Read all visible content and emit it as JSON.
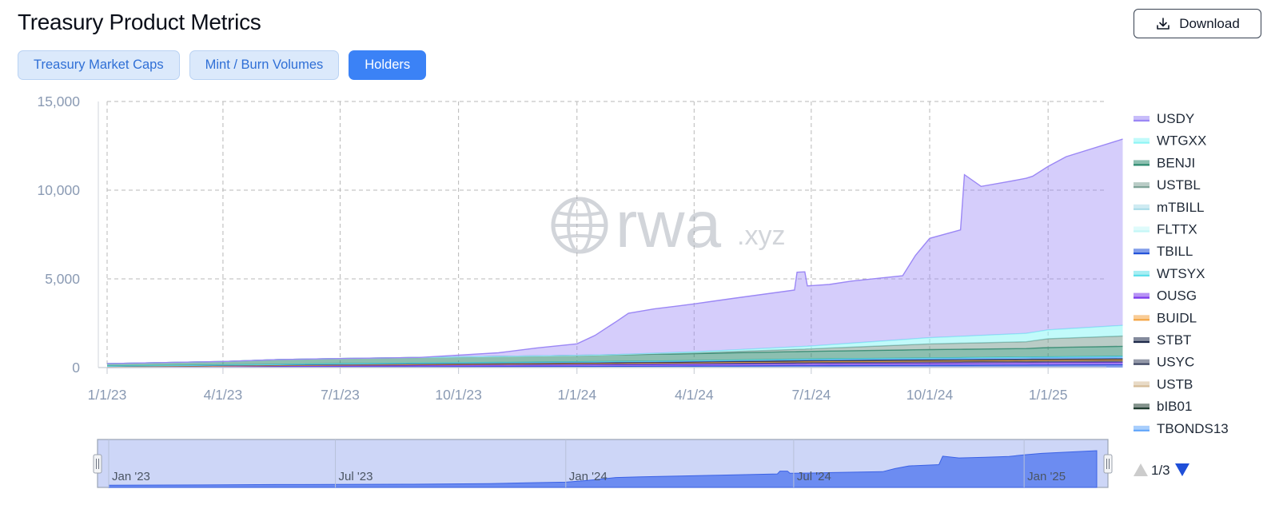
{
  "header": {
    "title": "Treasury Product Metrics",
    "download_label": "Download"
  },
  "tabs": [
    {
      "label": "Treasury Market Caps",
      "active": false
    },
    {
      "label": "Mint / Burn Volumes",
      "active": false
    },
    {
      "label": "Holders",
      "active": true
    }
  ],
  "watermark": {
    "main": "rwa",
    "suffix": ".xyz"
  },
  "legend": {
    "page": "1/3",
    "items": [
      {
        "name": "USDY",
        "color": "#9b87f5"
      },
      {
        "name": "WTGXX",
        "color": "#8ef5f5"
      },
      {
        "name": "BENJI",
        "color": "#2e8b70"
      },
      {
        "name": "USTBL",
        "color": "#7fa398"
      },
      {
        "name": "mTBILL",
        "color": "#a8dbe8"
      },
      {
        "name": "FLTTX",
        "color": "#c5f7f7"
      },
      {
        "name": "TBILL",
        "color": "#1d4ed8"
      },
      {
        "name": "WTSYX",
        "color": "#5ee0ea"
      },
      {
        "name": "OUSG",
        "color": "#7c3aed"
      },
      {
        "name": "BUIDL",
        "color": "#f4a340"
      },
      {
        "name": "STBT",
        "color": "#1e2a4a"
      },
      {
        "name": "USYC",
        "color": "#3b4460"
      },
      {
        "name": "USTB",
        "color": "#d6bc98"
      },
      {
        "name": "bIB01",
        "color": "#1f3b2f"
      },
      {
        "name": "TBONDS13",
        "color": "#60a5fa"
      }
    ]
  },
  "navigator": {
    "labels": [
      "Jan '23",
      "Jul '23",
      "Jan '24",
      "Jul '24",
      "Jan '25"
    ]
  },
  "chart_data": {
    "type": "area",
    "stacked": true,
    "x_axis_type": "date",
    "xlim": [
      "2023-01-01",
      "2025-02-28"
    ],
    "ylim": [
      0,
      15000
    ],
    "y_ticks": [
      "0",
      "5,000",
      "10,000",
      "15,000"
    ],
    "y_tick_values": [
      0,
      5000,
      10000,
      15000
    ],
    "x_ticks": [
      "1/1/23",
      "4/1/23",
      "7/1/23",
      "10/1/23",
      "1/1/24",
      "4/1/24",
      "7/1/24",
      "10/1/24",
      "1/1/25"
    ],
    "x_tick_dates": [
      "2023-01-01",
      "2023-04-01",
      "2023-07-01",
      "2023-10-01",
      "2024-01-01",
      "2024-04-01",
      "2024-07-01",
      "2024-10-01",
      "2025-01-01"
    ],
    "grid": true,
    "legend_position": "right",
    "series": [
      {
        "name": "TBILL",
        "color": "#1d4ed8",
        "x": [
          "2023-01-01",
          "2023-07-01",
          "2024-01-01",
          "2024-07-01",
          "2024-10-01",
          "2025-01-01",
          "2025-02-28"
        ],
        "y": [
          0,
          40,
          70,
          110,
          130,
          150,
          160
        ]
      },
      {
        "name": "OUSG",
        "color": "#7c3aed",
        "x": [
          "2023-01-01",
          "2023-07-01",
          "2024-01-01",
          "2024-07-01",
          "2025-02-28"
        ],
        "y": [
          30,
          60,
          90,
          110,
          130
        ]
      },
      {
        "name": "USYC",
        "color": "#3b4460",
        "x": [
          "2023-01-01",
          "2023-07-01",
          "2024-01-01",
          "2024-07-01",
          "2025-02-28"
        ],
        "y": [
          20,
          40,
          60,
          80,
          90
        ]
      },
      {
        "name": "BUIDL",
        "color": "#f4a340",
        "x": [
          "2023-01-01",
          "2024-03-20",
          "2024-07-01",
          "2025-02-28"
        ],
        "y": [
          0,
          10,
          40,
          60
        ]
      },
      {
        "name": "STBT",
        "color": "#1e2a4a",
        "x": [
          "2023-01-01",
          "2023-07-01",
          "2024-01-01",
          "2024-07-01",
          "2025-02-28"
        ],
        "y": [
          20,
          40,
          50,
          55,
          60
        ]
      },
      {
        "name": "TBONDS13",
        "color": "#60a5fa",
        "x": [
          "2023-01-01",
          "2024-01-01",
          "2024-07-01",
          "2025-02-28"
        ],
        "y": [
          10,
          30,
          60,
          100
        ]
      },
      {
        "name": "WTSYX",
        "color": "#5ee0ea",
        "x": [
          "2023-01-01",
          "2024-01-01",
          "2024-07-01",
          "2025-02-28"
        ],
        "y": [
          10,
          20,
          30,
          40
        ]
      },
      {
        "name": "BENJI",
        "color": "#2e8b70",
        "x": [
          "2023-01-01",
          "2023-04-01",
          "2023-05-15",
          "2023-07-01",
          "2023-10-01",
          "2024-01-01",
          "2024-04-01",
          "2024-07-01",
          "2024-10-01",
          "2024-12-15",
          "2025-01-01",
          "2025-02-28"
        ],
        "y": [
          130,
          190,
          270,
          290,
          330,
          360,
          390,
          430,
          470,
          480,
          520,
          560
        ]
      },
      {
        "name": "USTBL",
        "color": "#7fa398",
        "x": [
          "2023-01-01",
          "2024-01-01",
          "2024-04-01",
          "2024-07-01",
          "2024-10-01",
          "2024-12-15",
          "2025-01-01",
          "2025-02-28"
        ],
        "y": [
          0,
          0,
          40,
          140,
          320,
          380,
          500,
          580
        ]
      },
      {
        "name": "WTGXX",
        "color": "#8ef5f5",
        "x": [
          "2023-01-01",
          "2024-02-01",
          "2024-07-01",
          "2024-10-01",
          "2025-01-01",
          "2025-02-28"
        ],
        "y": [
          0,
          0,
          160,
          350,
          500,
          600
        ]
      },
      {
        "name": "USDY",
        "color": "#9b87f5",
        "x": [
          "2023-01-01",
          "2023-09-01",
          "2023-11-01",
          "2023-12-01",
          "2024-01-01",
          "2024-01-15",
          "2024-02-10",
          "2024-03-01",
          "2024-04-01",
          "2024-05-01",
          "2024-06-18",
          "2024-06-20",
          "2024-06-26",
          "2024-06-28",
          "2024-07-15",
          "2024-08-01",
          "2024-09-10",
          "2024-09-20",
          "2024-10-01",
          "2024-10-25",
          "2024-10-28",
          "2024-11-10",
          "2024-12-01",
          "2024-12-20",
          "2025-01-15",
          "2025-02-28"
        ],
        "y": [
          0,
          0,
          200,
          450,
          650,
          1100,
          2300,
          2500,
          2700,
          2900,
          3200,
          4200,
          4200,
          3400,
          3400,
          3500,
          3600,
          4700,
          5600,
          6000,
          9100,
          8400,
          8600,
          8800,
          9700,
          10500
        ]
      }
    ]
  }
}
